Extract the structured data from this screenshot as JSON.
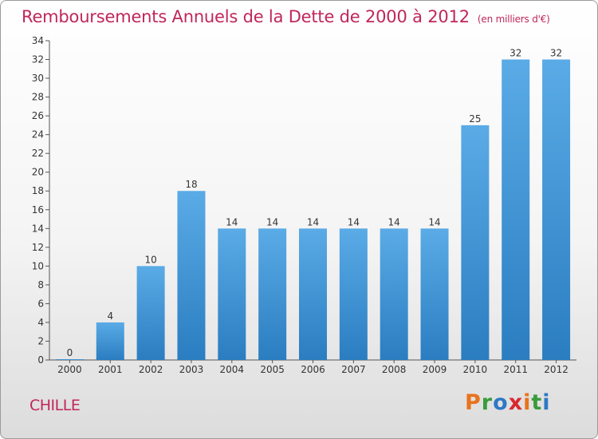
{
  "header": {
    "title": "Remboursements Annuels de la Dette de 2000 à 2012",
    "unit": "(en milliers d'€)"
  },
  "footer": {
    "commune": "CHILLE",
    "logo": [
      "P",
      "r",
      "o",
      "x",
      "i",
      "t",
      "i"
    ]
  },
  "colors": {
    "title": "#c0265b",
    "bar_top": "#5aabe6",
    "bar_bottom": "#2a7dc0",
    "logo": [
      "#e8731c",
      "#3a9b3a",
      "#2f78c4",
      "#d8292f",
      "#e8731c",
      "#3a9b3a",
      "#2f78c4"
    ]
  },
  "chart_data": {
    "type": "bar",
    "title": "Remboursements Annuels de la Dette de 2000 à 2012",
    "xlabel": "",
    "ylabel": "",
    "categories": [
      "2000",
      "2001",
      "2002",
      "2003",
      "2004",
      "2005",
      "2006",
      "2007",
      "2008",
      "2009",
      "2010",
      "2011",
      "2012"
    ],
    "values": [
      0,
      4,
      10,
      18,
      14,
      14,
      14,
      14,
      14,
      14,
      25,
      32,
      32
    ],
    "ylim": [
      0,
      34
    ],
    "yticks": [
      0,
      2,
      4,
      6,
      8,
      10,
      12,
      14,
      16,
      18,
      20,
      22,
      24,
      26,
      28,
      30,
      32,
      34
    ],
    "grid": false,
    "legend": "none"
  }
}
